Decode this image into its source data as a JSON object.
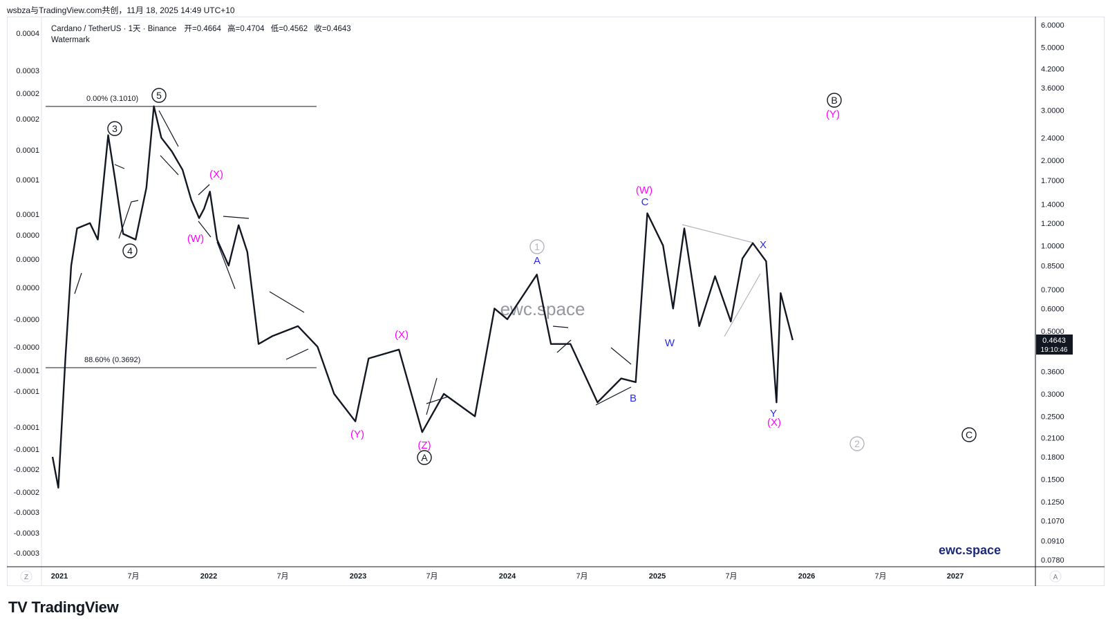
{
  "header": {
    "share_text": "wsbza与TradingView.com共创，11月 18, 2025 14:49 UTC+10"
  },
  "legend": {
    "symbol": "Cardano / TetherUS · 1天 · Binance",
    "open_label": "开",
    "open": "=0.4664",
    "high_label": "高",
    "high": "=0.4704",
    "low_label": "低",
    "low": "=0.4562",
    "close_label": "收",
    "close": "=0.4643",
    "watermark_label": "Watermark"
  },
  "watermark_center": "ewc.space",
  "brand_corner": "ewc.space",
  "price_tag": {
    "price": "0.4643",
    "countdown": "19:10:46"
  },
  "footer": {
    "logo_text": "TradingView",
    "logo_mark": "TV"
  },
  "scale_buttons": {
    "left": "Z",
    "right": "A"
  },
  "colors": {
    "candles": "#131722",
    "magenta": "#ff00ff",
    "blue": "#2a2ae8",
    "gray_label": "#b2b5be",
    "tag_bg": "#131722"
  },
  "chart_data": {
    "type": "line",
    "series_kind": "candlestick (approximated as close line)",
    "y_scale": "log",
    "right_axis_ticks": [
      "6.0000",
      "5.0000",
      "4.2000",
      "3.6000",
      "3.0000",
      "2.4000",
      "2.0000",
      "1.7000",
      "1.4000",
      "1.2000",
      "1.0000",
      "0.8500",
      "0.7000",
      "0.6000",
      "0.5000",
      "0.3600",
      "0.3000",
      "0.2500",
      "0.2100",
      "0.1800",
      "0.1500",
      "0.1250",
      "0.1070",
      "0.0910",
      "0.0780"
    ],
    "left_axis_ticks": [
      "0.0004",
      "0.0003",
      "0.0002",
      "0.0002",
      "0.0001",
      "0.0001",
      "0.0001",
      "0.0000",
      "0.0000",
      "0.0000",
      "-0.0000",
      "-0.0000",
      "-0.0001",
      "-0.0001",
      "-0.0001",
      "-0.0001",
      "-0.0002",
      "-0.0002",
      "-0.0003",
      "-0.0003",
      "-0.0003"
    ],
    "x_ticks": [
      "2021",
      "7月",
      "2022",
      "7月",
      "2023",
      "7月",
      "2024",
      "7月",
      "2025",
      "7月",
      "2026",
      "7月",
      "2027"
    ],
    "price_path": [
      [
        "2021-01-01",
        0.18
      ],
      [
        "2021-01-15",
        0.14
      ],
      [
        "2021-02-01",
        0.4
      ],
      [
        "2021-02-15",
        0.85
      ],
      [
        "2021-03-01",
        1.15
      ],
      [
        "2021-04-01",
        1.2
      ],
      [
        "2021-04-20",
        1.05
      ],
      [
        "2021-05-15",
        2.45
      ],
      [
        "2021-06-01",
        1.7
      ],
      [
        "2021-06-20",
        1.1
      ],
      [
        "2021-07-20",
        1.05
      ],
      [
        "2021-08-15",
        1.6
      ],
      [
        "2021-09-02",
        3.1
      ],
      [
        "2021-09-20",
        2.4
      ],
      [
        "2021-10-15",
        2.15
      ],
      [
        "2021-11-10",
        1.85
      ],
      [
        "2021-12-01",
        1.45
      ],
      [
        "2021-12-20",
        1.25
      ],
      [
        "2022-01-01",
        1.35
      ],
      [
        "2022-01-15",
        1.55
      ],
      [
        "2022-02-01",
        1.05
      ],
      [
        "2022-03-01",
        0.85
      ],
      [
        "2022-03-25",
        1.18
      ],
      [
        "2022-04-15",
        0.95
      ],
      [
        "2022-05-12",
        0.45
      ],
      [
        "2022-06-15",
        0.48
      ],
      [
        "2022-08-15",
        0.52
      ],
      [
        "2022-10-01",
        0.44
      ],
      [
        "2022-11-10",
        0.3
      ],
      [
        "2022-12-31",
        0.24
      ],
      [
        "2023-02-01",
        0.4
      ],
      [
        "2023-04-15",
        0.43
      ],
      [
        "2023-06-10",
        0.22
      ],
      [
        "2023-08-01",
        0.3
      ],
      [
        "2023-10-15",
        0.25
      ],
      [
        "2023-12-01",
        0.6
      ],
      [
        "2024-01-01",
        0.55
      ],
      [
        "2024-03-12",
        0.79
      ],
      [
        "2024-04-15",
        0.45
      ],
      [
        "2024-06-01",
        0.45
      ],
      [
        "2024-08-05",
        0.28
      ],
      [
        "2024-10-01",
        0.34
      ],
      [
        "2024-11-05",
        0.33
      ],
      [
        "2024-12-03",
        1.3
      ],
      [
        "2025-01-10",
        1.0
      ],
      [
        "2025-02-03",
        0.6
      ],
      [
        "2025-03-02",
        1.15
      ],
      [
        "2025-04-07",
        0.52
      ],
      [
        "2025-05-15",
        0.78
      ],
      [
        "2025-06-22",
        0.54
      ],
      [
        "2025-07-20",
        0.9
      ],
      [
        "2025-08-14",
        1.02
      ],
      [
        "2025-09-15",
        0.88
      ],
      [
        "2025-10-10",
        0.28
      ],
      [
        "2025-10-20",
        0.68
      ],
      [
        "2025-11-18",
        0.4643
      ]
    ],
    "fib_levels": [
      {
        "label": "0.00% (3.1010)",
        "value": 3.101
      },
      {
        "label": "88.60% (0.3692)",
        "value": 0.3692
      }
    ],
    "wave_labels": [
      {
        "text": "3",
        "style": "circled-black"
      },
      {
        "text": "4",
        "style": "circled-black"
      },
      {
        "text": "5",
        "style": "circled-black"
      },
      {
        "text": "(X)",
        "style": "magenta"
      },
      {
        "text": "(W)",
        "style": "magenta"
      },
      {
        "text": "(Y)",
        "style": "magenta"
      },
      {
        "text": "(X)",
        "style": "magenta"
      },
      {
        "text": "(Z)",
        "style": "magenta"
      },
      {
        "text": "A",
        "style": "circled-black"
      },
      {
        "text": "1",
        "style": "circled-gray"
      },
      {
        "text": "A",
        "style": "blue"
      },
      {
        "text": "B",
        "style": "blue"
      },
      {
        "text": "(W)",
        "style": "magenta"
      },
      {
        "text": "C",
        "style": "blue"
      },
      {
        "text": "W",
        "style": "blue"
      },
      {
        "text": "X",
        "style": "blue"
      },
      {
        "text": "Y",
        "style": "blue"
      },
      {
        "text": "(X)",
        "style": "magenta"
      },
      {
        "text": "B",
        "style": "circled-black"
      },
      {
        "text": "(Y)",
        "style": "magenta"
      },
      {
        "text": "2",
        "style": "circled-gray"
      },
      {
        "text": "C",
        "style": "circled-black"
      }
    ]
  }
}
